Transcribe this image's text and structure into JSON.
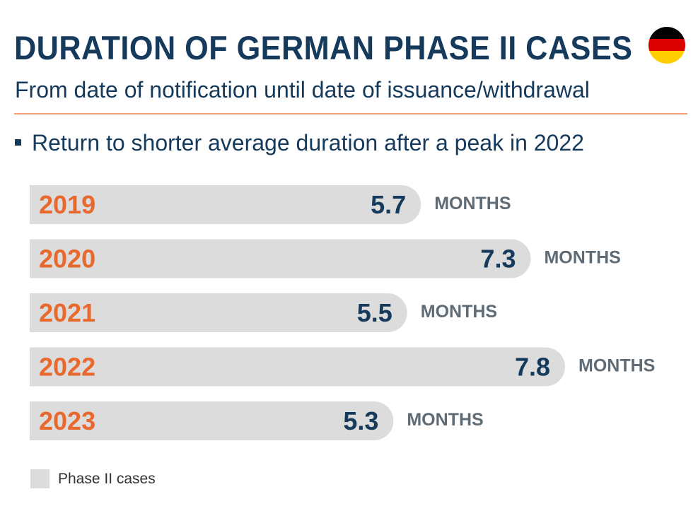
{
  "header": {
    "title": "DURATION OF GERMAN PHASE II CASES",
    "subtitle": "From date of notification until date of issuance/withdrawal",
    "flag_icon": "germany-flag-icon",
    "flag_colors": [
      "#000000",
      "#dd0000",
      "#ffce00"
    ]
  },
  "bullet": {
    "text": "Return to shorter average duration after a peak in 2022"
  },
  "legend": {
    "label": "Phase II cases",
    "swatch_color": "#dcdcdc"
  },
  "colors": {
    "title": "#163a5c",
    "category_label": "#e8692e",
    "value_label": "#163a5c",
    "unit_label": "#5f6b75",
    "bar": "#dcdcdc",
    "divider": "#f0a17e"
  },
  "chart_data": {
    "type": "bar",
    "orientation": "horizontal",
    "categories": [
      "2019",
      "2020",
      "2021",
      "2022",
      "2023"
    ],
    "series": [
      {
        "name": "Phase II cases",
        "values": [
          5.7,
          7.3,
          5.5,
          7.8,
          5.3
        ]
      }
    ],
    "value_labels": [
      "5.7",
      "7.3",
      "5.5",
      "7.8",
      "5.3"
    ],
    "unit_label": "MONTHS",
    "xlim": [
      0,
      7.8
    ],
    "grid": false,
    "legend_position": "bottom-left"
  }
}
